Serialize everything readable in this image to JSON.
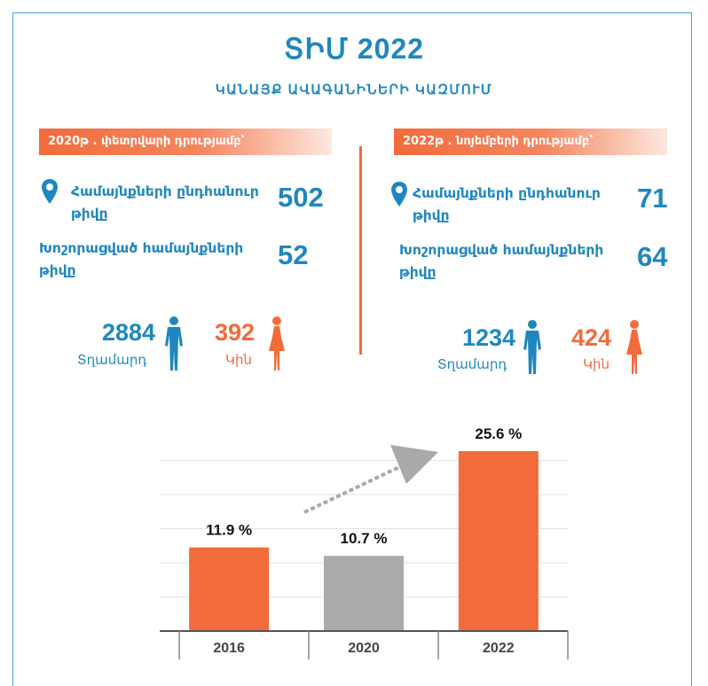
{
  "header": {
    "title": "ՏԻՄ  2022",
    "subtitle": "ԿԱՆԱՅՔ ԱՎԱԳԱՆԻՆԵՐԻ ԿԱԶՄՈՒՄ"
  },
  "left_panel": {
    "banner": "2020թ . փետրվարի դրությամբ՝",
    "communities_label_1": "Համայնքների ընդհանուր",
    "communities_label_2": "թիվը",
    "communities_value": "502",
    "enlarged_label_1": "Խոշորացված համայնքների",
    "enlarged_label_2": "թիվը",
    "enlarged_value": "52",
    "men_count": "2884",
    "men_label": "Տղամարդ",
    "women_count": "392",
    "women_label": "Կին"
  },
  "right_panel": {
    "banner": "2022թ . նոյեմբերի դրությամբ՝",
    "communities_label_1": "Համայնքների ընդհանուր",
    "communities_label_2": "թիվը",
    "communities_value": "71",
    "enlarged_label_1": "Խոշորացված համայնքների",
    "enlarged_label_2": "թիվը",
    "enlarged_value": "64",
    "men_count": "1234",
    "men_label": "Տղամարդ",
    "women_count": "424",
    "women_label": "Կին"
  },
  "colors": {
    "accent_blue": "#1f87bf",
    "accent_orange": "#f26b3a",
    "bar_gray": "#aaaaaa"
  },
  "icons": [
    "location-pin-icon",
    "man-silhouette-icon",
    "woman-silhouette-icon",
    "trend-arrow-icon"
  ],
  "chart_data": {
    "type": "bar",
    "categories": [
      "2016",
      "2020",
      "2022"
    ],
    "values": [
      11.9,
      10.7,
      25.6
    ],
    "value_labels": [
      "11.9 %",
      "10.7 %",
      "25.6 %"
    ],
    "bar_colors": [
      "#f26b3a",
      "#aaaaaa",
      "#f26b3a"
    ],
    "title": "",
    "xlabel": "",
    "ylabel": "",
    "ylim": [
      0,
      28
    ],
    "grid": true,
    "annotation": "upward trend arrow"
  }
}
